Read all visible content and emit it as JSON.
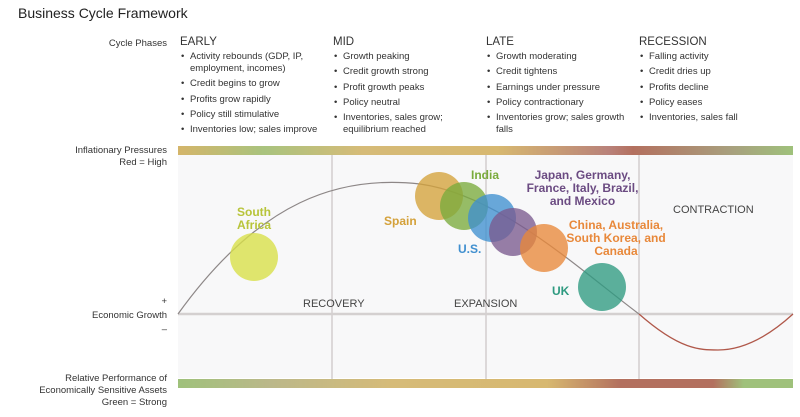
{
  "title": "Business Cycle Framework",
  "labels": {
    "cycle_phases": "Cycle Phases",
    "inflation_1": "Inflationary Pressures",
    "inflation_2": "Red = High",
    "plus": "+",
    "growth": "Economic Growth",
    "minus": "–",
    "perf_1": "Relative Performance of",
    "perf_2": "Economically Sensitive Assets",
    "perf_3": "Green = Strong"
  },
  "phases": [
    {
      "name": "EARLY",
      "items": [
        "Activity rebounds (GDP, IP, employment, incomes)",
        "Credit begins to grow",
        "Profits grow rapidly",
        "Policy still stimulative",
        "Inventories low; sales improve"
      ]
    },
    {
      "name": "MID",
      "items": [
        "Growth peaking",
        "Credit growth strong",
        "Profit growth peaks",
        "Policy neutral",
        "Inventories, sales grow; equilibrium reached"
      ]
    },
    {
      "name": "LATE",
      "items": [
        "Growth moderating",
        "Credit tightens",
        "Earnings under pressure",
        "Policy contractionary",
        "Inventories grow; sales growth falls"
      ]
    },
    {
      "name": "RECESSION",
      "items": [
        "Falling activity",
        "Credit dries up",
        "Profits decline",
        "Policy eases",
        "Inventories, sales fall"
      ]
    }
  ],
  "stages": {
    "recovery": "RECOVERY",
    "expansion": "EXPANSION",
    "contraction": "CONTRACTION"
  },
  "countries": [
    {
      "label": "South Africa",
      "color": "#d8e04a"
    },
    {
      "label": "Spain",
      "color": "#d4a13a"
    },
    {
      "label": "India",
      "color": "#7aab3c"
    },
    {
      "label": "U.S.",
      "color": "#3f8fcf"
    },
    {
      "label": "Japan, Germany, France, Italy, Brazil, and Mexico",
      "color": "#7a5a8e"
    },
    {
      "label": "China, Australia, South Korea, and Canada",
      "color": "#e8883a"
    },
    {
      "label": "UK",
      "color": "#2e9a80"
    }
  ]
}
